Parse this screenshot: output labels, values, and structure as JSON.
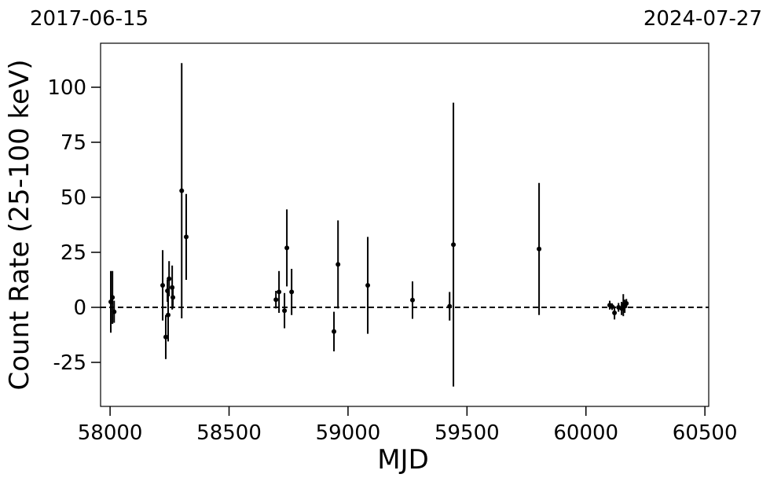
{
  "chart_data": {
    "type": "errorbar",
    "annotations": [
      "2017-06-15",
      "2024-07-27"
    ],
    "xlabel": "MJD",
    "ylabel": "Count Rate (25-100 keV)",
    "xlim": [
      57960,
      60516
    ],
    "xticks": [
      58000,
      58500,
      59000,
      59500,
      60000,
      60500
    ],
    "ylim": [
      -45,
      120
    ],
    "yticks": [
      -25,
      0,
      25,
      50,
      75,
      100
    ],
    "hline": 0,
    "color": "#000000",
    "x": [
      58003,
      58010,
      58017,
      58221,
      58234,
      58241,
      58244,
      58248,
      58261,
      58264,
      58301,
      58320,
      58697,
      58710,
      58733,
      58743,
      58763,
      58941,
      58958,
      59083,
      59271,
      59427,
      59443,
      59803,
      60100,
      60110,
      60120,
      60137,
      60150,
      60157,
      60163,
      60170
    ],
    "values": [
      2.5,
      4.5,
      -2,
      10,
      -13.5,
      7.5,
      -3.5,
      13,
      9,
      4.5,
      53,
      32,
      3.5,
      7,
      -1.5,
      27,
      7,
      -11,
      19.5,
      10,
      3.3,
      0.5,
      28.5,
      26.5,
      1,
      0.3,
      -2.5,
      0,
      -0.5,
      1,
      0.5,
      1.8
    ],
    "errors": [
      14,
      12,
      5,
      16,
      10,
      5,
      12,
      8,
      10,
      5,
      58,
      19.5,
      4,
      9.5,
      8,
      17.5,
      10.5,
      9,
      20,
      22,
      8.5,
      6.5,
      64.5,
      30,
      2,
      1.5,
      3,
      2,
      3,
      5,
      3,
      2
    ]
  }
}
